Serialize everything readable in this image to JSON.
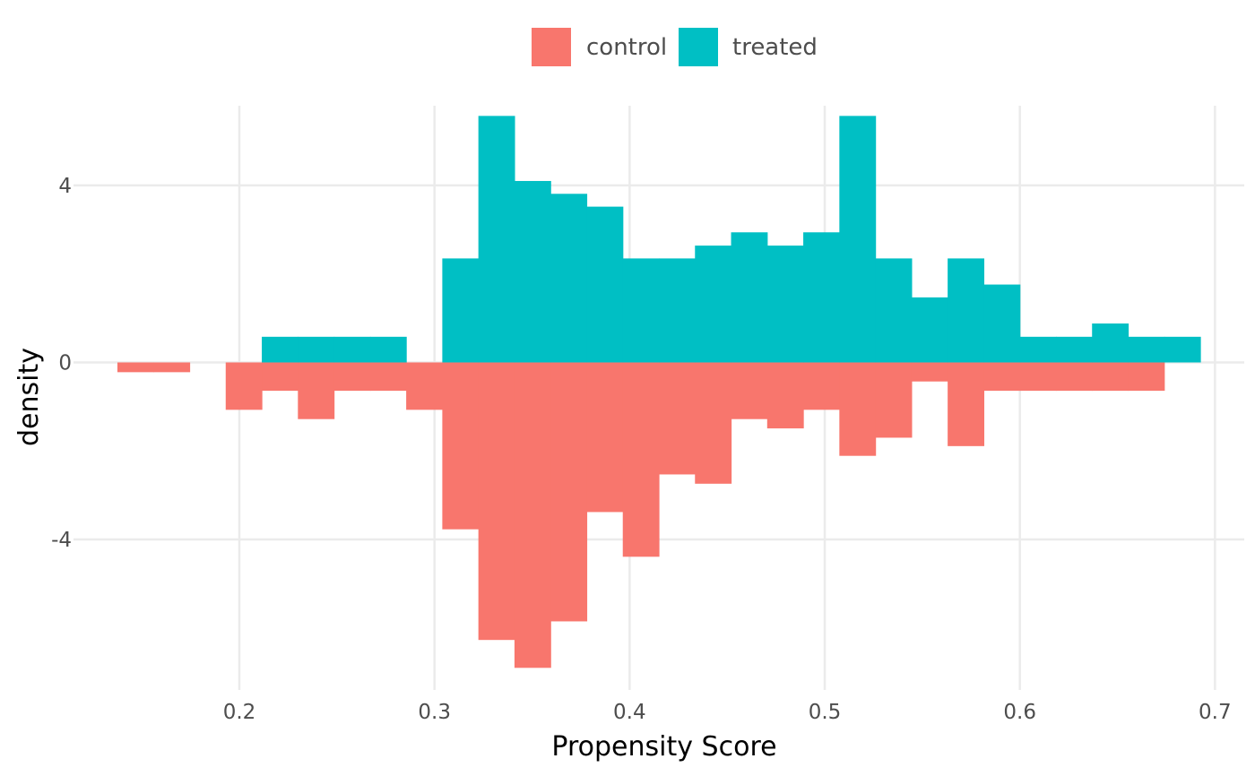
{
  "chart_data": {
    "type": "bar",
    "subtype": "mirrored-histogram",
    "xlabel": "Propensity Score",
    "ylabel": "density",
    "xlim": [
      0.115,
      0.715
    ],
    "ylim": [
      -7.4,
      5.8
    ],
    "x_ticks": [
      0.2,
      0.3,
      0.4,
      0.5,
      0.6,
      0.7
    ],
    "x_tick_labels": [
      "0.2",
      "0.3",
      "0.4",
      "0.5",
      "0.6",
      "0.7"
    ],
    "y_ticks": [
      -4,
      0,
      4
    ],
    "y_tick_labels": [
      "-4",
      "0",
      "4"
    ],
    "grid": true,
    "legend_position": "top",
    "colors": {
      "control": "#F8766D",
      "treated": "#00BFC4"
    },
    "series": [
      {
        "name": "control",
        "direction": "down",
        "bins": [
          {
            "x0": 0.1375,
            "x1": 0.156,
            "value": 0.22
          },
          {
            "x0": 0.156,
            "x1": 0.1745,
            "value": 0.22
          },
          {
            "x0": 0.193,
            "x1": 0.2115,
            "value": 1.07
          },
          {
            "x0": 0.2115,
            "x1": 0.23,
            "value": 0.64
          },
          {
            "x0": 0.23,
            "x1": 0.2485,
            "value": 1.28
          },
          {
            "x0": 0.2485,
            "x1": 0.267,
            "value": 0.64
          },
          {
            "x0": 0.267,
            "x1": 0.2855,
            "value": 0.64
          },
          {
            "x0": 0.2855,
            "x1": 0.304,
            "value": 1.07
          },
          {
            "x0": 0.304,
            "x1": 0.3225,
            "value": 3.77
          },
          {
            "x0": 0.3225,
            "x1": 0.341,
            "value": 6.27
          },
          {
            "x0": 0.341,
            "x1": 0.3595,
            "value": 6.9
          },
          {
            "x0": 0.3595,
            "x1": 0.378,
            "value": 5.85
          },
          {
            "x0": 0.378,
            "x1": 0.3965,
            "value": 3.38
          },
          {
            "x0": 0.3965,
            "x1": 0.415,
            "value": 4.39
          },
          {
            "x0": 0.415,
            "x1": 0.4335,
            "value": 2.53
          },
          {
            "x0": 0.4335,
            "x1": 0.452,
            "value": 2.74
          },
          {
            "x0": 0.452,
            "x1": 0.4705,
            "value": 1.28
          },
          {
            "x0": 0.4705,
            "x1": 0.489,
            "value": 1.49
          },
          {
            "x0": 0.489,
            "x1": 0.5075,
            "value": 1.07
          },
          {
            "x0": 0.5075,
            "x1": 0.526,
            "value": 2.11
          },
          {
            "x0": 0.526,
            "x1": 0.5445,
            "value": 1.7
          },
          {
            "x0": 0.5445,
            "x1": 0.563,
            "value": 0.43
          },
          {
            "x0": 0.563,
            "x1": 0.5815,
            "value": 1.89
          },
          {
            "x0": 0.5815,
            "x1": 0.6,
            "value": 0.64
          },
          {
            "x0": 0.6,
            "x1": 0.6185,
            "value": 0.64
          },
          {
            "x0": 0.6185,
            "x1": 0.637,
            "value": 0.64
          },
          {
            "x0": 0.637,
            "x1": 0.6555,
            "value": 0.64
          },
          {
            "x0": 0.6555,
            "x1": 0.674,
            "value": 0.64
          }
        ]
      },
      {
        "name": "treated",
        "direction": "up",
        "bins": [
          {
            "x0": 0.2115,
            "x1": 0.23,
            "value": 0.58
          },
          {
            "x0": 0.23,
            "x1": 0.2485,
            "value": 0.58
          },
          {
            "x0": 0.2485,
            "x1": 0.267,
            "value": 0.58
          },
          {
            "x0": 0.267,
            "x1": 0.2855,
            "value": 0.58
          },
          {
            "x0": 0.304,
            "x1": 0.3225,
            "value": 2.35
          },
          {
            "x0": 0.3225,
            "x1": 0.341,
            "value": 5.57
          },
          {
            "x0": 0.341,
            "x1": 0.3595,
            "value": 4.1
          },
          {
            "x0": 0.3595,
            "x1": 0.378,
            "value": 3.81
          },
          {
            "x0": 0.378,
            "x1": 0.3965,
            "value": 3.52
          },
          {
            "x0": 0.3965,
            "x1": 0.415,
            "value": 2.35
          },
          {
            "x0": 0.415,
            "x1": 0.4335,
            "value": 2.35
          },
          {
            "x0": 0.4335,
            "x1": 0.452,
            "value": 2.64
          },
          {
            "x0": 0.452,
            "x1": 0.4705,
            "value": 2.94
          },
          {
            "x0": 0.4705,
            "x1": 0.489,
            "value": 2.64
          },
          {
            "x0": 0.489,
            "x1": 0.5075,
            "value": 2.94
          },
          {
            "x0": 0.5075,
            "x1": 0.526,
            "value": 5.57
          },
          {
            "x0": 0.526,
            "x1": 0.5445,
            "value": 2.35
          },
          {
            "x0": 0.5445,
            "x1": 0.563,
            "value": 1.47
          },
          {
            "x0": 0.563,
            "x1": 0.5815,
            "value": 2.35
          },
          {
            "x0": 0.5815,
            "x1": 0.6,
            "value": 1.76
          },
          {
            "x0": 0.6,
            "x1": 0.6185,
            "value": 0.58
          },
          {
            "x0": 0.6185,
            "x1": 0.637,
            "value": 0.58
          },
          {
            "x0": 0.637,
            "x1": 0.6555,
            "value": 0.88
          },
          {
            "x0": 0.6555,
            "x1": 0.674,
            "value": 0.58
          },
          {
            "x0": 0.674,
            "x1": 0.6925,
            "value": 0.58
          }
        ]
      }
    ]
  }
}
